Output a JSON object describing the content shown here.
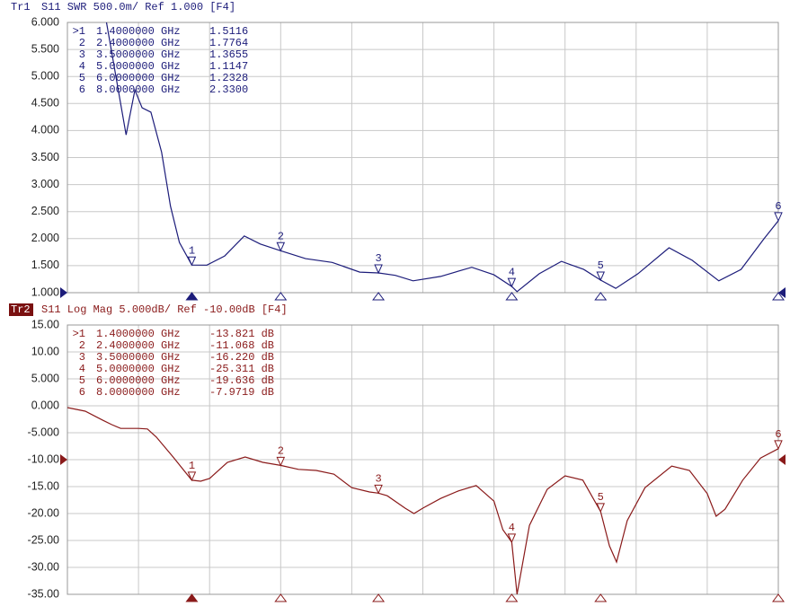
{
  "chart_data": [
    {
      "type": "line",
      "trace": "Tr1",
      "header": "S11  SWR 500.0m/  Ref 1.000  [F4]",
      "active": false,
      "color": "#1c1c7a",
      "ref": 1.0,
      "xlim": [
        0,
        8
      ],
      "xticks": [
        0,
        0.8,
        1.6,
        2.4,
        3.2,
        4.0,
        4.8,
        5.6,
        6.4,
        7.2,
        8.0
      ],
      "ylim": [
        1,
        6
      ],
      "yticks": [
        {
          "value": 6,
          "label": "6.000"
        },
        {
          "value": 5.5,
          "label": "5.500"
        },
        {
          "value": 5,
          "label": "5.000"
        },
        {
          "value": 4.5,
          "label": "4.500"
        },
        {
          "value": 4,
          "label": "4.000"
        },
        {
          "value": 3.5,
          "label": "3.500"
        },
        {
          "value": 3,
          "label": "3.000"
        },
        {
          "value": 2.5,
          "label": "2.500"
        },
        {
          "value": 2,
          "label": "2.000"
        },
        {
          "value": 1.5,
          "label": "1.500"
        },
        {
          "value": 1,
          "label": "1.000"
        }
      ],
      "grid": true,
      "x": [
        0.44,
        0.66,
        0.76,
        0.84,
        0.94,
        1.06,
        1.16,
        1.26,
        1.4,
        1.57,
        1.77,
        1.99,
        2.17,
        2.4,
        2.68,
        2.98,
        3.29,
        3.5,
        3.69,
        3.89,
        4.2,
        4.55,
        4.8,
        5.0,
        5.06,
        5.31,
        5.56,
        5.81,
        6.0,
        6.17,
        6.42,
        6.77,
        7.03,
        7.33,
        7.58,
        7.84,
        8.0
      ],
      "values": [
        6.0,
        3.92,
        4.75,
        4.42,
        4.34,
        3.6,
        2.6,
        1.93,
        1.5116,
        1.51,
        1.68,
        2.05,
        1.9,
        1.7764,
        1.63,
        1.56,
        1.38,
        1.3655,
        1.32,
        1.22,
        1.3,
        1.47,
        1.33,
        1.1147,
        1.02,
        1.35,
        1.58,
        1.43,
        1.2328,
        1.08,
        1.35,
        1.83,
        1.6,
        1.22,
        1.43,
        2.0,
        2.33
      ],
      "markers": [
        {
          "id": "1",
          "row_id": ">1",
          "x": 1.4,
          "x_label": "1.4000000 GHz",
          "value": 1.5116,
          "value_label": "1.5116"
        },
        {
          "id": "2",
          "row_id": "2",
          "x": 2.4,
          "x_label": "2.4000000 GHz",
          "value": 1.7764,
          "value_label": "1.7764"
        },
        {
          "id": "3",
          "row_id": "3",
          "x": 3.5,
          "x_label": "3.5000000 GHz",
          "value": 1.3655,
          "value_label": "1.3655"
        },
        {
          "id": "4",
          "row_id": "4",
          "x": 5.0,
          "x_label": "5.0000000 GHz",
          "value": 1.1147,
          "value_label": "1.1147"
        },
        {
          "id": "5",
          "row_id": "5",
          "x": 6.0,
          "x_label": "6.0000000 GHz",
          "value": 1.2328,
          "value_label": "1.2328"
        },
        {
          "id": "6",
          "row_id": "6",
          "x": 8.0,
          "x_label": "8.0000000 GHz",
          "value": 2.33,
          "value_label": "2.3300"
        }
      ]
    },
    {
      "type": "line",
      "trace": "Tr2",
      "header": "S11  Log Mag 5.000dB/  Ref -10.00dB  [F4]",
      "active": true,
      "color": "#8a1a1a",
      "ref": -10,
      "xlim": [
        0,
        8
      ],
      "xticks": [
        0,
        0.8,
        1.6,
        2.4,
        3.2,
        4.0,
        4.8,
        5.6,
        6.4,
        7.2,
        8.0
      ],
      "ylim": [
        -35,
        15
      ],
      "yticks": [
        {
          "value": 15,
          "label": "15.00"
        },
        {
          "value": 10,
          "label": "10.00"
        },
        {
          "value": 5,
          "label": "5.000"
        },
        {
          "value": 0,
          "label": "0.000"
        },
        {
          "value": -5,
          "label": "-5.000"
        },
        {
          "value": -10,
          "label": "-10.00"
        },
        {
          "value": -15,
          "label": "-15.00"
        },
        {
          "value": -20,
          "label": "-20.00"
        },
        {
          "value": -25,
          "label": "-25.00"
        },
        {
          "value": -30,
          "label": "-30.00"
        },
        {
          "value": -35,
          "label": "-35.00"
        }
      ],
      "grid": true,
      "x": [
        0,
        0.2,
        0.4,
        0.5,
        0.6,
        0.8,
        0.9,
        1.0,
        1.2,
        1.4,
        1.5,
        1.6,
        1.8,
        2.0,
        2.2,
        2.4,
        2.6,
        2.8,
        3.0,
        3.2,
        3.4,
        3.5,
        3.6,
        3.8,
        3.9,
        4.0,
        4.2,
        4.4,
        4.6,
        4.8,
        4.9,
        5.0,
        5.06,
        5.2,
        5.4,
        5.6,
        5.8,
        6.0,
        6.1,
        6.18,
        6.3,
        6.5,
        6.8,
        7.0,
        7.2,
        7.3,
        7.4,
        7.6,
        7.8,
        8.0
      ],
      "values": [
        -0.33,
        -1,
        -2.7,
        -3.5,
        -4.2,
        -4.2,
        -4.3,
        -5.8,
        -9.7,
        -13.821,
        -14,
        -13.5,
        -10.5,
        -9.5,
        -10.5,
        -11.068,
        -11.8,
        -12,
        -12.7,
        -15.2,
        -16,
        -16.22,
        -16.7,
        -19,
        -20,
        -19,
        -17.2,
        -15.8,
        -14.8,
        -17.7,
        -23,
        -25.311,
        -35,
        -22.2,
        -15.5,
        -13,
        -13.8,
        -19.636,
        -26,
        -29,
        -21.3,
        -15.2,
        -11.2,
        -12,
        -16.3,
        -20.5,
        -19.2,
        -13.8,
        -9.7,
        -7.9719
      ],
      "markers": [
        {
          "id": "1",
          "row_id": ">1",
          "x": 1.4,
          "x_label": "1.4000000 GHz",
          "value": -13.821,
          "value_label": "-13.821 dB"
        },
        {
          "id": "2",
          "row_id": "2",
          "x": 2.4,
          "x_label": "2.4000000 GHz",
          "value": -11.068,
          "value_label": "-11.068 dB"
        },
        {
          "id": "3",
          "row_id": "3",
          "x": 3.5,
          "x_label": "3.5000000 GHz",
          "value": -16.22,
          "value_label": "-16.220 dB"
        },
        {
          "id": "4",
          "row_id": "4",
          "x": 5.0,
          "x_label": "5.0000000 GHz",
          "value": -25.311,
          "value_label": "-25.311 dB"
        },
        {
          "id": "5",
          "row_id": "5",
          "x": 6.0,
          "x_label": "6.0000000 GHz",
          "value": -19.636,
          "value_label": "-19.636 dB"
        },
        {
          "id": "6",
          "row_id": "6",
          "x": 8.0,
          "x_label": "8.0000000 GHz",
          "value": -7.9719,
          "value_label": "-7.9719 dB"
        }
      ]
    }
  ]
}
